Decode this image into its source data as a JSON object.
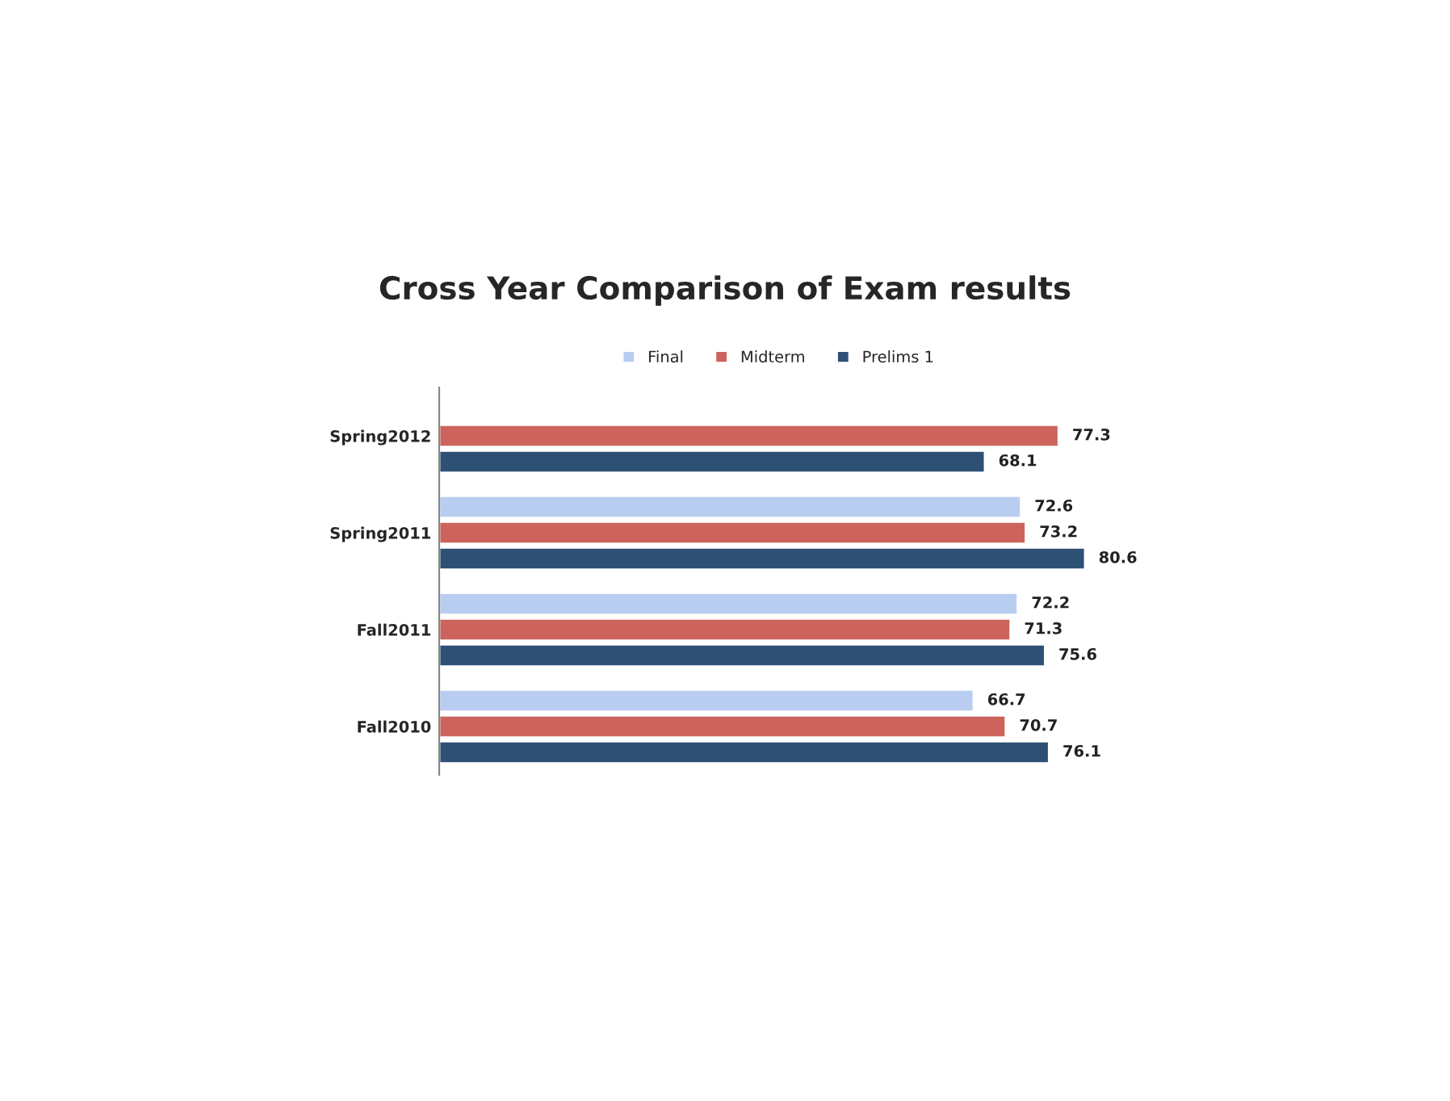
{
  "chart_data": {
    "type": "bar",
    "orientation": "horizontal",
    "title": "Cross Year Comparison of Exam results",
    "categories": [
      "Spring2012",
      "Spring2011",
      "Fall2011",
      "Fall2010"
    ],
    "series": [
      {
        "name": "Final",
        "color": "#b9cdf0",
        "values": [
          null,
          72.6,
          72.2,
          66.7
        ]
      },
      {
        "name": "Midterm",
        "color": "#cd635d",
        "values": [
          77.3,
          73.2,
          71.3,
          70.7
        ]
      },
      {
        "name": "Prelims 1",
        "color": "#2e5075",
        "values": [
          68.1,
          80.6,
          75.6,
          76.1
        ]
      }
    ],
    "data_labels": true,
    "legend": "top",
    "grid": false,
    "tick_labels": "y"
  }
}
